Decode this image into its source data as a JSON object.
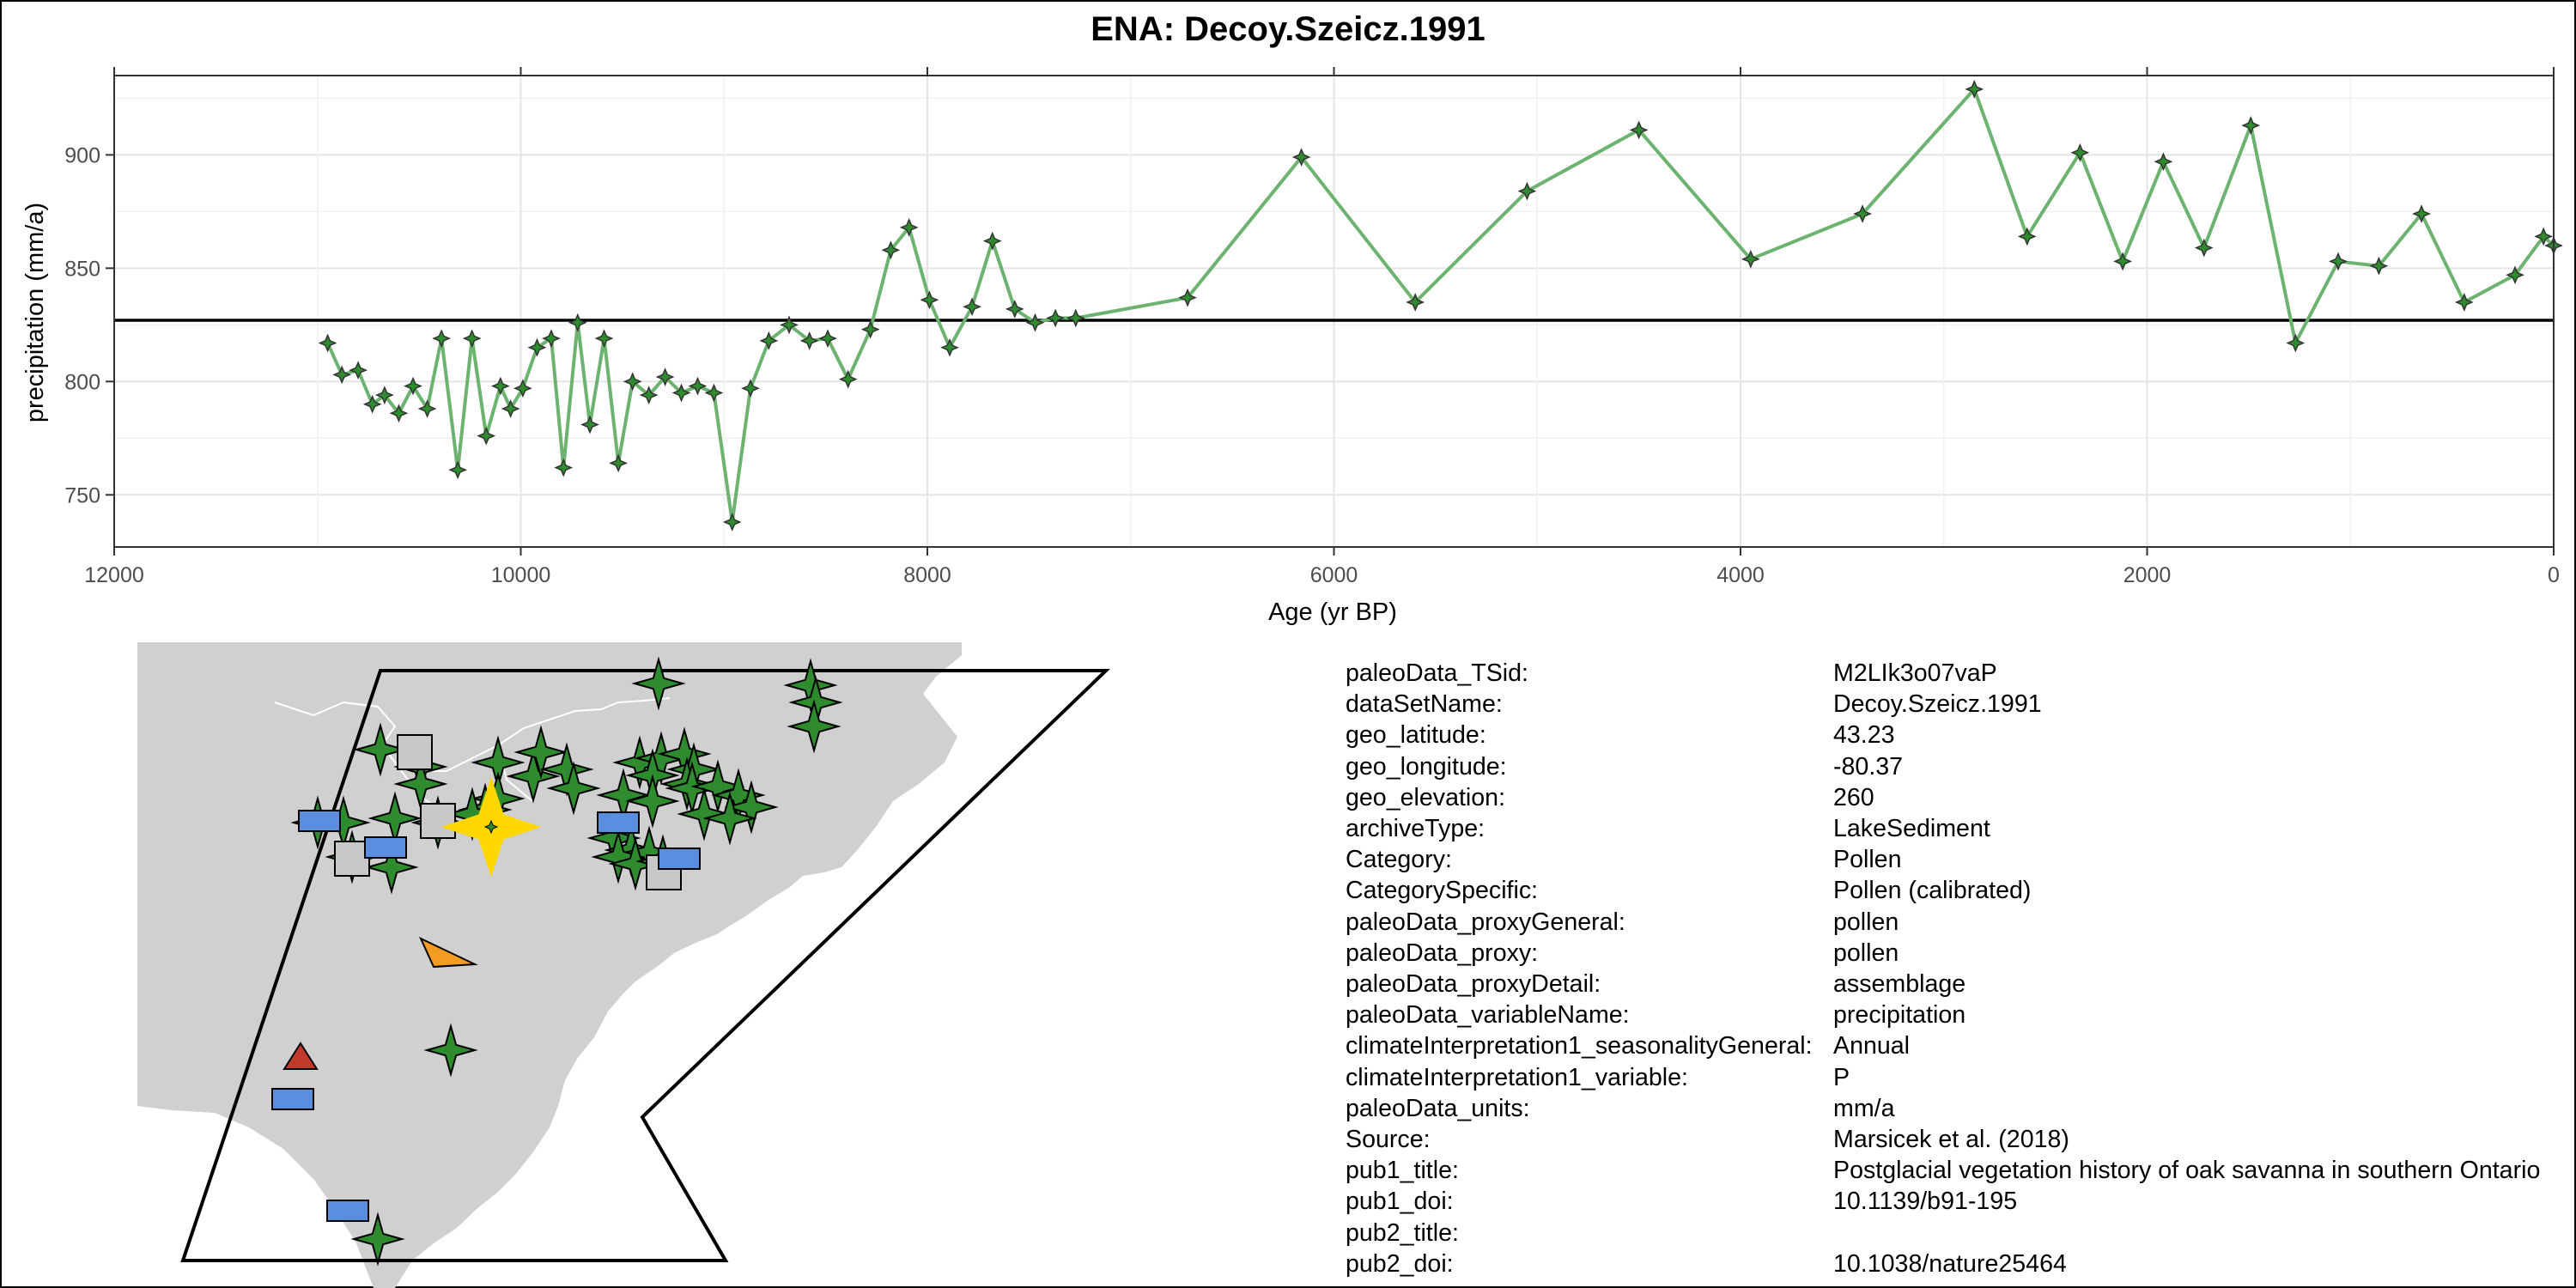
{
  "title": "ENA: Decoy.Szeicz.1991",
  "chart_data": {
    "type": "line",
    "xlabel": "Age (yr BP)",
    "ylabel": "precipitation (mm/a)",
    "x_reversed": true,
    "xlim": [
      12000,
      0
    ],
    "ylim": [
      727,
      935
    ],
    "x_ticks": [
      12000,
      10000,
      8000,
      6000,
      4000,
      2000,
      0
    ],
    "x_tick_labels": [
      "12000",
      "10000",
      "8000",
      "6000",
      "4000",
      "2000",
      "0"
    ],
    "y_ticks": [
      750,
      800,
      850,
      900
    ],
    "y_tick_labels": [
      "750",
      "800",
      "850",
      "900"
    ],
    "grid": true,
    "reference_line": 827,
    "line_color": "#6bb36f",
    "marker_color": "#2e8b2e",
    "x": [
      10950,
      10880,
      10800,
      10730,
      10670,
      10600,
      10530,
      10460,
      10390,
      10310,
      10240,
      10170,
      10100,
      10050,
      9990,
      9920,
      9850,
      9790,
      9720,
      9660,
      9590,
      9520,
      9450,
      9370,
      9290,
      9210,
      9130,
      9050,
      8960,
      8870,
      8780,
      8680,
      8580,
      8490,
      8390,
      8280,
      8180,
      8090,
      7990,
      7890,
      7780,
      7680,
      7570,
      7470,
      7370,
      7270,
      6720,
      6160,
      5600,
      5050,
      4500,
      3950,
      3400,
      2850,
      2590,
      2330,
      2120,
      1920,
      1720,
      1490,
      1270,
      1060,
      860,
      650,
      440,
      190,
      50,
      0
    ],
    "y": [
      817,
      803,
      805,
      790,
      794,
      786,
      798,
      788,
      819,
      761,
      819,
      776,
      798,
      788,
      797,
      815,
      819,
      762,
      826,
      781,
      819,
      764,
      800,
      794,
      802,
      795,
      798,
      795,
      738,
      797,
      818,
      825,
      818,
      819,
      801,
      823,
      858,
      868,
      836,
      815,
      833,
      862,
      832,
      826,
      828,
      828,
      837,
      899,
      835,
      884,
      911,
      854,
      874,
      929,
      864,
      901,
      853,
      897,
      859,
      913,
      817,
      853,
      851,
      874,
      835,
      847,
      864,
      860
    ]
  },
  "map": {
    "land_color": "#d0d0d0",
    "target_marker_color": "#ffd700",
    "marker_legend": [
      "green-star",
      "grey-square",
      "blue-rectangle",
      "orange-triangle",
      "red-triangle"
    ]
  },
  "metadata": [
    {
      "key": "paleoData_TSid:",
      "value": "M2LIk3o07vaP"
    },
    {
      "key": "dataSetName:",
      "value": "Decoy.Szeicz.1991"
    },
    {
      "key": "geo_latitude:",
      "value": "43.23"
    },
    {
      "key": "geo_longitude:",
      "value": "-80.37"
    },
    {
      "key": "geo_elevation:",
      "value": "260"
    },
    {
      "key": "archiveType:",
      "value": "LakeSediment"
    },
    {
      "key": "Category:",
      "value": "Pollen"
    },
    {
      "key": "CategorySpecific:",
      "value": "Pollen (calibrated)"
    },
    {
      "key": "paleoData_proxyGeneral:",
      "value": "pollen"
    },
    {
      "key": "paleoData_proxy:",
      "value": "pollen"
    },
    {
      "key": "paleoData_proxyDetail:",
      "value": "assemblage"
    },
    {
      "key": "paleoData_variableName:",
      "value": "precipitation"
    },
    {
      "key": "climateInterpretation1_seasonalityGeneral:",
      "value": "Annual"
    },
    {
      "key": "climateInterpretation1_variable:",
      "value": "P"
    },
    {
      "key": "paleoData_units:",
      "value": "mm/a"
    },
    {
      "key": "Source:",
      "value": "Marsicek et al. (2018)"
    },
    {
      "key": "pub1_title:",
      "value": "Postglacial vegetation history of oak savanna in southern Ontario"
    },
    {
      "key": "pub1_doi:",
      "value": "10.1139/b91-195"
    },
    {
      "key": "pub2_title:",
      "value": ""
    },
    {
      "key": "pub2_doi:",
      "value": "10.1038/nature25464"
    }
  ]
}
